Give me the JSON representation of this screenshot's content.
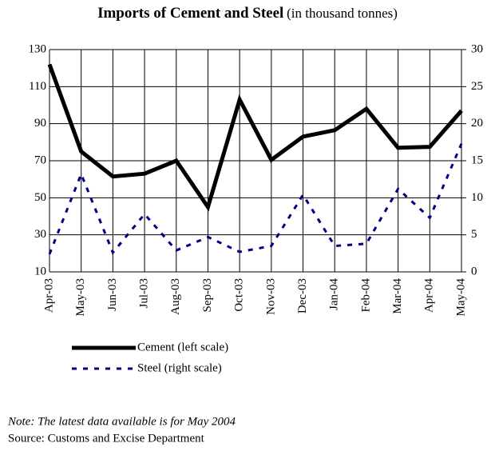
{
  "chart_data": {
    "type": "line",
    "title": "Imports of Cement and Steel",
    "subtitle": "(in thousand tonnes)",
    "categories": [
      "Apr-03",
      "May-03",
      "Jun-03",
      "Jul-03",
      "Aug-03",
      "Sep-03",
      "Oct-03",
      "Nov-03",
      "Dec-03",
      "Jan-04",
      "Feb-04",
      "Mar-04",
      "Apr-04",
      "May-04"
    ],
    "series": [
      {
        "name": "Cement (left scale)",
        "color": "#000000",
        "values": [
          122,
          75,
          61.5,
          63,
          70,
          45,
          103,
          70.5,
          83,
          86.5,
          98,
          77,
          77.5,
          97
        ]
      },
      {
        "name": "Steel (right scale)",
        "color": "#000080",
        "axis": "y2",
        "values": [
          2.4,
          13.2,
          2.6,
          7.8,
          2.9,
          4.7,
          2.7,
          3.5,
          10.4,
          3.5,
          3.8,
          11.2,
          7.3,
          17.3
        ]
      }
    ],
    "ylim": [
      10,
      130
    ],
    "yticks": [
      10,
      30,
      50,
      70,
      90,
      110,
      130
    ],
    "y2lim": [
      0,
      30
    ],
    "y2ticks": [
      0,
      5,
      10,
      15,
      20,
      25,
      30
    ],
    "grid": true,
    "note": "Note: The latest data available is for May 2004",
    "source": "Source: Customs and Excise Department"
  }
}
